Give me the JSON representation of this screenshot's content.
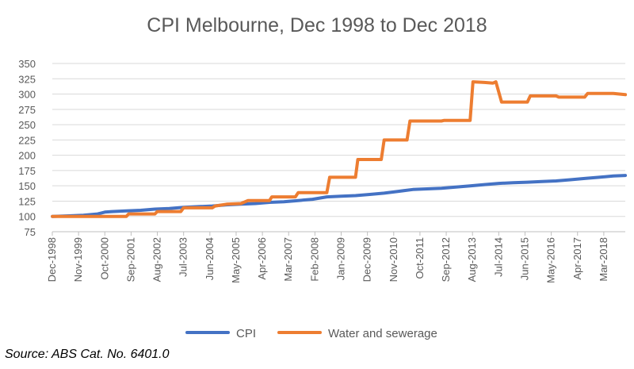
{
  "chart_data": {
    "type": "line",
    "title": "CPI Melbourne, Dec 1998 to Dec 2018",
    "xlabel": "",
    "ylabel": "",
    "ylim": [
      75,
      350
    ],
    "yticks": [
      75,
      100,
      125,
      150,
      175,
      200,
      225,
      250,
      275,
      300,
      325,
      350
    ],
    "x_tick_labels": [
      "Dec-1998",
      "Nov-1999",
      "Oct-2000",
      "Sep-2001",
      "Aug-2002",
      "Jul-2003",
      "Jun-2004",
      "May-2005",
      "Apr-2006",
      "Mar-2007",
      "Feb-2008",
      "Jan-2009",
      "Dec-2009",
      "Nov-2010",
      "Oct-2011",
      "Sep-2012",
      "Aug-2013",
      "Jul-2014",
      "Jun-2015",
      "May-2016",
      "Apr-2017",
      "Mar-2018"
    ],
    "x_range": [
      1998.917,
      2018.917
    ],
    "legend_position": "bottom",
    "series": [
      {
        "name": "CPI",
        "color": "#4472C4",
        "points": [
          [
            1998.92,
            100
          ],
          [
            1999.5,
            101
          ],
          [
            2000.0,
            102
          ],
          [
            2000.5,
            104
          ],
          [
            2000.75,
            107
          ],
          [
            2001.0,
            108
          ],
          [
            2001.5,
            109
          ],
          [
            2002.0,
            110
          ],
          [
            2002.5,
            112
          ],
          [
            2003.0,
            113
          ],
          [
            2003.5,
            115
          ],
          [
            2004.0,
            116
          ],
          [
            2004.5,
            117
          ],
          [
            2005.0,
            119
          ],
          [
            2005.5,
            120
          ],
          [
            2006.0,
            121
          ],
          [
            2006.5,
            123
          ],
          [
            2007.0,
            124
          ],
          [
            2007.5,
            126
          ],
          [
            2008.0,
            128
          ],
          [
            2008.5,
            132
          ],
          [
            2009.0,
            133
          ],
          [
            2009.5,
            134
          ],
          [
            2010.0,
            136
          ],
          [
            2010.5,
            138
          ],
          [
            2011.0,
            141
          ],
          [
            2011.5,
            144
          ],
          [
            2012.0,
            145
          ],
          [
            2012.5,
            146
          ],
          [
            2013.0,
            148
          ],
          [
            2013.5,
            150
          ],
          [
            2014.0,
            152
          ],
          [
            2014.5,
            154
          ],
          [
            2015.0,
            155
          ],
          [
            2015.5,
            156
          ],
          [
            2016.0,
            157
          ],
          [
            2016.5,
            158
          ],
          [
            2017.0,
            160
          ],
          [
            2017.5,
            162
          ],
          [
            2018.0,
            164
          ],
          [
            2018.5,
            166
          ],
          [
            2018.92,
            167
          ]
        ]
      },
      {
        "name": "Water and sewerage",
        "color": "#ED7D31",
        "points": [
          [
            1998.92,
            100
          ],
          [
            2000.0,
            100
          ],
          [
            2001.0,
            100
          ],
          [
            2001.5,
            100
          ],
          [
            2001.58,
            104
          ],
          [
            2002.5,
            104
          ],
          [
            2002.58,
            108
          ],
          [
            2003.4,
            108
          ],
          [
            2003.5,
            114
          ],
          [
            2004.5,
            114
          ],
          [
            2004.6,
            117
          ],
          [
            2005.0,
            120
          ],
          [
            2005.5,
            121
          ],
          [
            2005.75,
            126
          ],
          [
            2006.5,
            126
          ],
          [
            2006.58,
            132
          ],
          [
            2007.4,
            132
          ],
          [
            2007.5,
            139
          ],
          [
            2008.5,
            139
          ],
          [
            2008.6,
            164
          ],
          [
            2009.5,
            164
          ],
          [
            2009.58,
            193
          ],
          [
            2010.4,
            193
          ],
          [
            2010.5,
            225
          ],
          [
            2011.3,
            225
          ],
          [
            2011.4,
            256
          ],
          [
            2012.5,
            256
          ],
          [
            2012.6,
            257
          ],
          [
            2013.5,
            257
          ],
          [
            2013.6,
            320
          ],
          [
            2014.0,
            319
          ],
          [
            2014.3,
            318
          ],
          [
            2014.4,
            320
          ],
          [
            2014.6,
            287
          ],
          [
            2015.5,
            287
          ],
          [
            2015.6,
            297
          ],
          [
            2016.5,
            297
          ],
          [
            2016.6,
            295
          ],
          [
            2017.5,
            295
          ],
          [
            2017.6,
            301
          ],
          [
            2018.5,
            301
          ],
          [
            2018.92,
            299
          ]
        ]
      }
    ]
  },
  "source_note": "Source: ABS Cat. No. 6401.0"
}
